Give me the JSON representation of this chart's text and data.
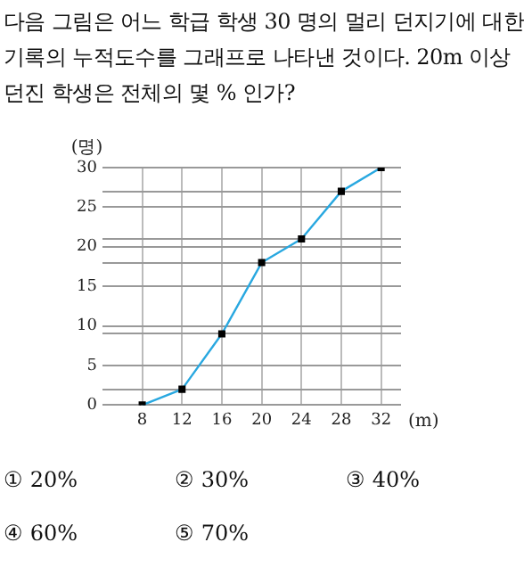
{
  "chart_data": {
    "type": "line",
    "title": "다음 그림은 어느 학급 학생 30 명의 멀리 던지기에 대한 기록의 누적도수를 그래프로 나타낸 것이다. 20m 이상 던진 학생은 전체의 몇 % 인가?",
    "xlabel": "(m)",
    "ylabel": "(명)",
    "x": [
      8,
      12,
      16,
      20,
      24,
      28,
      32
    ],
    "series": [
      {
        "color": "#29a8e0",
        "values": [
          0,
          2,
          9,
          18,
          21,
          27,
          30
        ]
      }
    ],
    "xlim": [
      4,
      34
    ],
    "xticks": [
      8,
      12,
      16,
      20,
      24,
      28,
      32
    ],
    "ylim": [
      0,
      30
    ],
    "yticks": [
      0,
      {
        "value": 2,
        "label": null
      },
      5,
      {
        "value": 9,
        "label": null
      },
      10,
      15,
      {
        "value": 18,
        "label": null
      },
      20,
      {
        "value": 21,
        "label": null
      },
      25,
      {
        "value": 27,
        "label": null
      },
      30
    ],
    "grid": true,
    "marker": "square",
    "legend": false,
    "annotations": [
      "① 20%",
      "② 30%",
      "③ 40%",
      "④ 60%",
      "⑤ 70%"
    ]
  }
}
